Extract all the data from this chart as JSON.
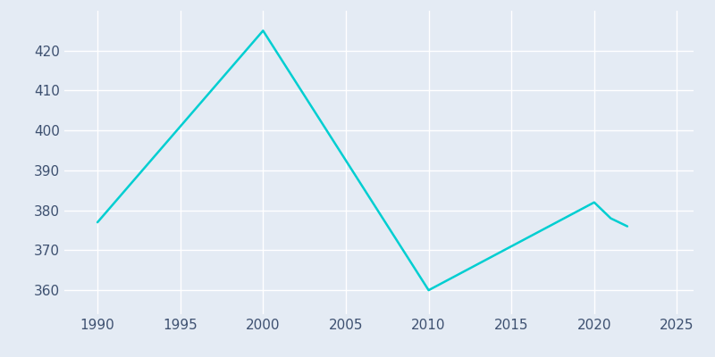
{
  "years": [
    1990,
    2000,
    2010,
    2020,
    2021,
    2022
  ],
  "population": [
    377,
    425,
    360,
    382,
    378,
    376
  ],
  "line_color": "#00CED1",
  "background_color": "#E4EBF4",
  "grid_color": "#FFFFFF",
  "xlim": [
    1988,
    2026
  ],
  "ylim": [
    354,
    430
  ],
  "yticks": [
    360,
    370,
    380,
    390,
    400,
    410,
    420
  ],
  "xticks": [
    1990,
    1995,
    2000,
    2005,
    2010,
    2015,
    2020,
    2025
  ],
  "tick_color": "#3D5070",
  "tick_fontsize": 11,
  "line_width": 1.8
}
